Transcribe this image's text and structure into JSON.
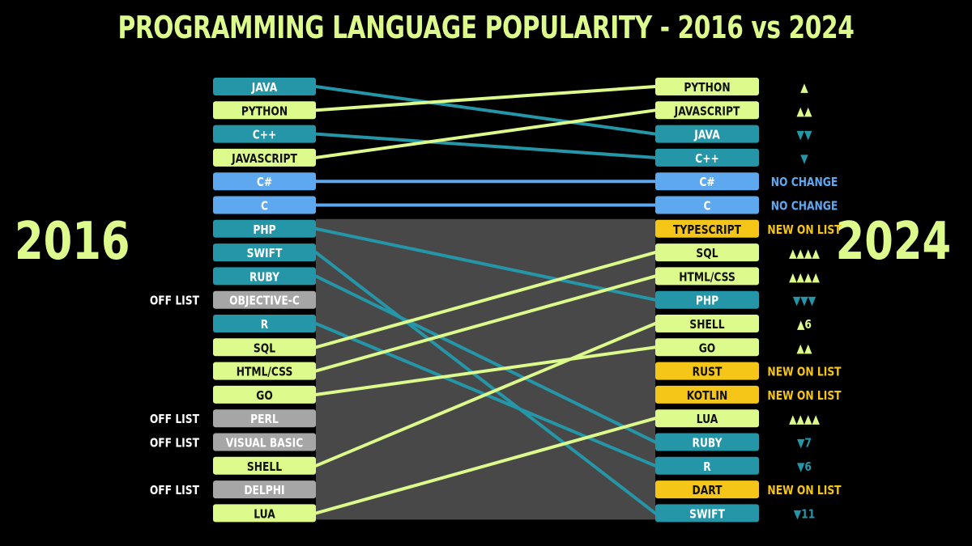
{
  "colors": {
    "background": "#000000",
    "title": "#ddfa8c",
    "rising": "#ddfa8c",
    "falling": "#2596a8",
    "unchanged": "#5ea8f0",
    "new": "#f5c518",
    "off_list": "#a6a6a6",
    "region": "#484848"
  },
  "chart_data": {
    "type": "slope",
    "title": "PROGRAMMING LANGUAGE POPULARITY - 2016 vs 2024",
    "left_year": "2016",
    "right_year": "2024",
    "ranking_2016": [
      {
        "name": "JAVA",
        "status": "falling"
      },
      {
        "name": "PYTHON",
        "status": "rising"
      },
      {
        "name": "C++",
        "status": "falling"
      },
      {
        "name": "JAVASCRIPT",
        "status": "rising"
      },
      {
        "name": "C#",
        "status": "unchanged"
      },
      {
        "name": "C",
        "status": "unchanged"
      },
      {
        "name": "PHP",
        "status": "falling"
      },
      {
        "name": "SWIFT",
        "status": "falling"
      },
      {
        "name": "RUBY",
        "status": "falling"
      },
      {
        "name": "OBJECTIVE-C",
        "status": "off",
        "note": "OFF LIST"
      },
      {
        "name": "R",
        "status": "falling"
      },
      {
        "name": "SQL",
        "status": "rising"
      },
      {
        "name": "HTML/CSS",
        "status": "rising"
      },
      {
        "name": "GO",
        "status": "rising"
      },
      {
        "name": "PERL",
        "status": "off",
        "note": "OFF LIST"
      },
      {
        "name": "VISUAL BASIC",
        "status": "off",
        "note": "OFF LIST"
      },
      {
        "name": "SHELL",
        "status": "rising"
      },
      {
        "name": "DELPHI",
        "status": "off",
        "note": "OFF LIST"
      },
      {
        "name": "LUA",
        "status": "rising"
      }
    ],
    "ranking_2024": [
      {
        "name": "PYTHON",
        "status": "rising",
        "change": "▲"
      },
      {
        "name": "JAVASCRIPT",
        "status": "rising",
        "change": "▲▲"
      },
      {
        "name": "JAVA",
        "status": "falling",
        "change": "▼▼"
      },
      {
        "name": "C++",
        "status": "falling",
        "change": "▼"
      },
      {
        "name": "C#",
        "status": "unchanged",
        "change": "NO CHANGE"
      },
      {
        "name": "C",
        "status": "unchanged",
        "change": "NO CHANGE"
      },
      {
        "name": "TYPESCRIPT",
        "status": "new",
        "change": "NEW ON LIST"
      },
      {
        "name": "SQL",
        "status": "rising",
        "change": "▲▲▲▲"
      },
      {
        "name": "HTML/CSS",
        "status": "rising",
        "change": "▲▲▲▲"
      },
      {
        "name": "PHP",
        "status": "falling",
        "change": "▼▼▼"
      },
      {
        "name": "SHELL",
        "status": "rising",
        "change": "▲6"
      },
      {
        "name": "GO",
        "status": "rising",
        "change": "▲▲"
      },
      {
        "name": "RUST",
        "status": "new",
        "change": "NEW ON LIST"
      },
      {
        "name": "KOTLIN",
        "status": "new",
        "change": "NEW ON LIST"
      },
      {
        "name": "LUA",
        "status": "rising",
        "change": "▲▲▲▲"
      },
      {
        "name": "RUBY",
        "status": "falling",
        "change": "▼7"
      },
      {
        "name": "R",
        "status": "falling",
        "change": "▼6"
      },
      {
        "name": "DART",
        "status": "new",
        "change": "NEW ON LIST"
      },
      {
        "name": "SWIFT",
        "status": "falling",
        "change": "▼11"
      }
    ]
  }
}
